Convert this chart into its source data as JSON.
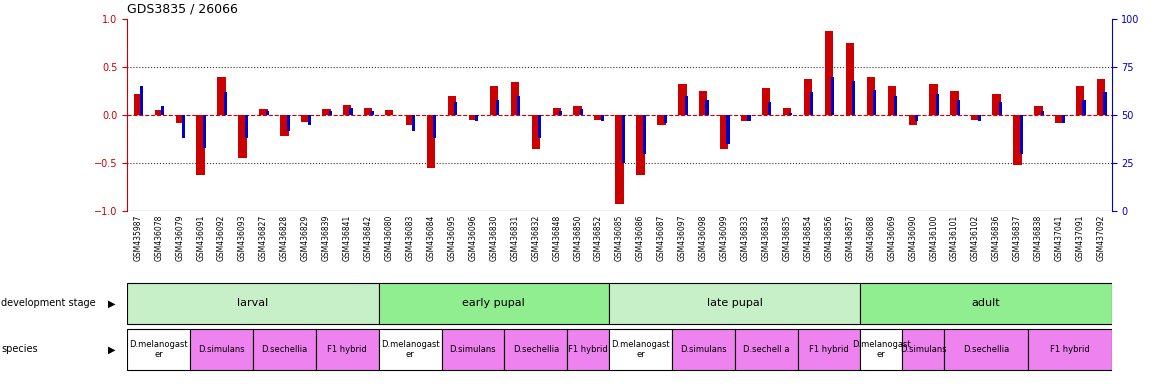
{
  "title": "GDS3835 / 26066",
  "samples": [
    "GSM435987",
    "GSM436078",
    "GSM436079",
    "GSM436091",
    "GSM436092",
    "GSM436093",
    "GSM436827",
    "GSM436828",
    "GSM436829",
    "GSM436839",
    "GSM436841",
    "GSM436842",
    "GSM436080",
    "GSM436083",
    "GSM436084",
    "GSM436095",
    "GSM436096",
    "GSM436830",
    "GSM436831",
    "GSM436832",
    "GSM436848",
    "GSM436850",
    "GSM436852",
    "GSM436085",
    "GSM436086",
    "GSM436087",
    "GSM436097",
    "GSM436098",
    "GSM436099",
    "GSM436833",
    "GSM436834",
    "GSM436835",
    "GSM436854",
    "GSM436856",
    "GSM436857",
    "GSM436088",
    "GSM436069",
    "GSM436090",
    "GSM436100",
    "GSM436101",
    "GSM436102",
    "GSM436836",
    "GSM436837",
    "GSM436838",
    "GSM437041",
    "GSM437091",
    "GSM437092"
  ],
  "log2_ratio": [
    0.22,
    0.05,
    -0.08,
    -0.62,
    0.4,
    -0.45,
    0.06,
    -0.22,
    -0.07,
    0.06,
    0.11,
    0.07,
    0.05,
    -0.1,
    -0.55,
    0.2,
    -0.05,
    0.3,
    0.35,
    -0.35,
    0.08,
    0.1,
    -0.05,
    -0.92,
    -0.62,
    -0.1,
    0.33,
    0.25,
    -0.35,
    -0.06,
    0.28,
    0.07,
    0.38,
    0.88,
    0.75,
    0.4,
    0.3,
    -0.1,
    0.32,
    0.25,
    -0.05,
    0.22,
    -0.52,
    0.1,
    -0.08,
    0.3,
    0.38
  ],
  "percentile": [
    65,
    55,
    38,
    33,
    62,
    38,
    52,
    42,
    45,
    52,
    54,
    52,
    50,
    42,
    38,
    57,
    47,
    58,
    60,
    38,
    52,
    53,
    47,
    25,
    30,
    46,
    60,
    58,
    35,
    47,
    57,
    51,
    62,
    70,
    68,
    63,
    60,
    47,
    61,
    58,
    47,
    57,
    30,
    52,
    46,
    58,
    62
  ],
  "dev_stages": [
    {
      "label": "larval",
      "start": 0,
      "end": 12,
      "color": "#90ee90"
    },
    {
      "label": "early pupal",
      "start": 12,
      "end": 23,
      "color": "#90ee90"
    },
    {
      "label": "late pupal",
      "start": 23,
      "end": 35,
      "color": "#90ee90"
    },
    {
      "label": "adult",
      "start": 35,
      "end": 47,
      "color": "#90ee90"
    }
  ],
  "species_groups": [
    {
      "label": "D.melanogast\ner",
      "start": 0,
      "end": 1,
      "color": "#ffffff"
    },
    {
      "label": "D.simulans",
      "start": 1,
      "end": 3,
      "color": "#ee82ee"
    },
    {
      "label": "D.sechellia",
      "start": 3,
      "end": 5,
      "color": "#ee82ee"
    },
    {
      "label": "F1 hybrid",
      "start": 5,
      "end": 6,
      "color": "#ee82ee"
    },
    {
      "label": "D.melanogast\ner",
      "start": 12,
      "end": 13,
      "color": "#ffffff"
    },
    {
      "label": "D.simulans",
      "start": 13,
      "end": 15,
      "color": "#ee82ee"
    },
    {
      "label": "D.sechellia",
      "start": 15,
      "end": 17,
      "color": "#ee82ee"
    },
    {
      "label": "F1 hybrid",
      "start": 17,
      "end": 18,
      "color": "#ee82ee"
    },
    {
      "label": "D.melanogast\ner",
      "start": 23,
      "end": 24,
      "color": "#ffffff"
    },
    {
      "label": "D.simulans",
      "start": 24,
      "end": 27,
      "color": "#ee82ee"
    },
    {
      "label": "D.sechell a",
      "start": 27,
      "end": 29,
      "color": "#ee82ee"
    },
    {
      "label": "F1 hybrid",
      "start": 29,
      "end": 35,
      "color": "#ee82ee"
    },
    {
      "label": "D.melanogast\ner",
      "start": 35,
      "end": 36,
      "color": "#ffffff"
    },
    {
      "label": "D.simulans",
      "start": 36,
      "end": 38,
      "color": "#ee82ee"
    },
    {
      "label": "D.sechellia",
      "start": 38,
      "end": 42,
      "color": "#ee82ee"
    },
    {
      "label": "F1 hybrid",
      "start": 42,
      "end": 47,
      "color": "#ee82ee"
    }
  ],
  "ylim_left": [
    -1.0,
    1.0
  ],
  "ylim_right": [
    0,
    100
  ],
  "yticks_left": [
    -1.0,
    -0.5,
    0.0,
    0.5,
    1.0
  ],
  "yticks_right": [
    0,
    25,
    50,
    75,
    100
  ],
  "bar_width": 0.4,
  "percentile_bar_width": 0.15,
  "background_color": "#ffffff",
  "left_axis_color": "#cc0000",
  "right_axis_color": "#0000cc",
  "zero_line_color": "#cc0000",
  "dotted_line_color": "#333333"
}
